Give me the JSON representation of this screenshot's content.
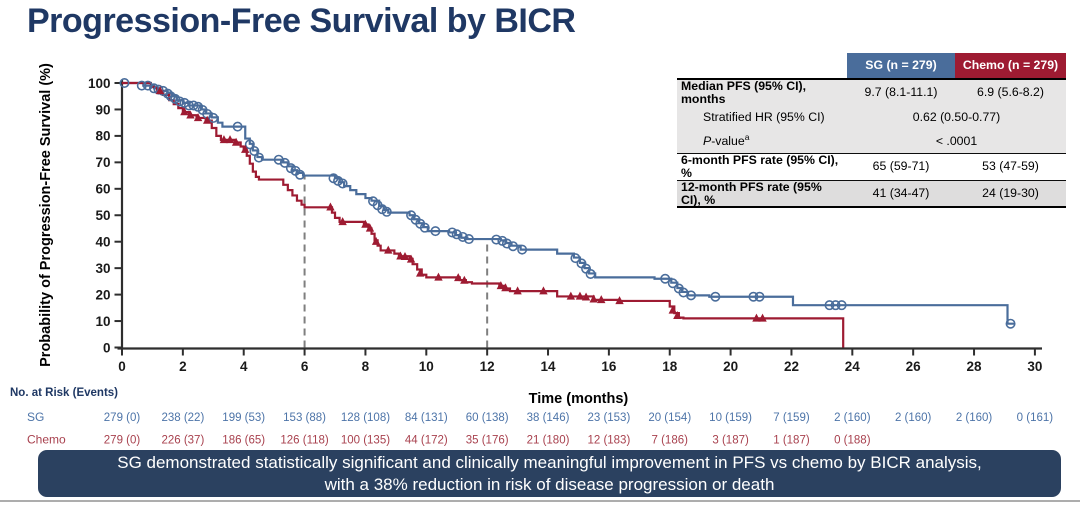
{
  "title": "Progression-Free Survival by BICR",
  "colors": {
    "title_navy": "#1f3864",
    "sg_blue": "#4a6d9b",
    "chemo_red": "#9e1b32",
    "banner_bg": "#2b4160",
    "table_row_gray": "#e7e6e6"
  },
  "stats_table": {
    "header": {
      "sg": "SG (n = 279)",
      "chemo": "Chemo (n = 279)"
    },
    "rows": {
      "median": {
        "label": "Median PFS (95% CI), months",
        "sg": "9.7 (8.1-11.1)",
        "chemo": "6.9 (5.6-8.2)"
      },
      "hr": {
        "label": "Stratified HR (95% CI)",
        "value": "0.62 (0.50-0.77)"
      },
      "pvalue": {
        "label_italic": "P",
        "label_rest": "-value",
        "label_sup": "a",
        "value": "< .0001"
      },
      "rate6": {
        "label": "6-month PFS rate (95% CI), %",
        "sg": "65 (59-71)",
        "chemo": "53 (47-59)"
      },
      "rate12": {
        "label": "12-month PFS rate (95% CI), %",
        "sg": "41 (34-47)",
        "chemo": "24 (19-30)"
      }
    }
  },
  "banner": {
    "line1": "SG demonstrated statistically significant and clinically meaningful improvement in PFS vs chemo by BICR analysis,",
    "line2": "with a 38% reduction in risk of disease progression or death"
  },
  "chart_data": {
    "type": "line",
    "subtype": "kaplan-meier-step",
    "xlabel": "Time (months)",
    "ylabel": "Probability of Progression-Free Survival (%)",
    "xlim": [
      0,
      31
    ],
    "ylim": [
      0,
      100
    ],
    "x_ticks": [
      0,
      2,
      4,
      6,
      8,
      10,
      12,
      14,
      16,
      18,
      20,
      22,
      24,
      26,
      28,
      30
    ],
    "y_ticks": [
      0,
      10,
      20,
      30,
      40,
      50,
      60,
      70,
      80,
      90,
      100
    ],
    "grid": false,
    "legend_position": "none (table header serves as legend)",
    "reference_lines": [
      {
        "x": 6,
        "y_top": 65,
        "style": "dashed"
      },
      {
        "x": 12,
        "y_top": 41,
        "style": "dashed"
      }
    ],
    "series": [
      {
        "name": "SG",
        "color": "#4a6d9b",
        "marker": "circle",
        "end": 29.35,
        "steps": [
          [
            0,
            100
          ],
          [
            0.7,
            99
          ],
          [
            1.05,
            98
          ],
          [
            1.25,
            97
          ],
          [
            1.5,
            96
          ],
          [
            1.65,
            95
          ],
          [
            1.8,
            93.5
          ],
          [
            2,
            92.5
          ],
          [
            2.2,
            91.5
          ],
          [
            2.6,
            90
          ],
          [
            2.75,
            88.5
          ],
          [
            2.95,
            87
          ],
          [
            3.15,
            85
          ],
          [
            3.3,
            83.5
          ],
          [
            4.05,
            79
          ],
          [
            4.2,
            77
          ],
          [
            4.3,
            74.5
          ],
          [
            4.45,
            72
          ],
          [
            4.6,
            71
          ],
          [
            5.3,
            70
          ],
          [
            5.45,
            68.5
          ],
          [
            5.6,
            67
          ],
          [
            5.75,
            66
          ],
          [
            5.95,
            65
          ],
          [
            7,
            64
          ],
          [
            7.15,
            62.5
          ],
          [
            7.3,
            61
          ],
          [
            7.5,
            59.5
          ],
          [
            7.7,
            58
          ],
          [
            8,
            56.5
          ],
          [
            8.2,
            55.5
          ],
          [
            8.45,
            53.5
          ],
          [
            8.6,
            52
          ],
          [
            8.75,
            51
          ],
          [
            9.45,
            50
          ],
          [
            9.6,
            48.5
          ],
          [
            9.75,
            47
          ],
          [
            9.9,
            45.5
          ],
          [
            10.05,
            44
          ],
          [
            10.75,
            43.5
          ],
          [
            10.95,
            42.5
          ],
          [
            11.15,
            41.5
          ],
          [
            11.35,
            41
          ],
          [
            12.45,
            40.5
          ],
          [
            12.6,
            39.5
          ],
          [
            12.8,
            38.5
          ],
          [
            13.1,
            37
          ],
          [
            14.3,
            35.5
          ],
          [
            14.85,
            34
          ],
          [
            15.05,
            32
          ],
          [
            15.2,
            30
          ],
          [
            15.35,
            28
          ],
          [
            15.55,
            26.5
          ],
          [
            17.5,
            26
          ],
          [
            18.05,
            24.5
          ],
          [
            18.25,
            22.5
          ],
          [
            18.4,
            21
          ],
          [
            18.6,
            19.7
          ],
          [
            19.3,
            19.2
          ],
          [
            22.05,
            16
          ],
          [
            29.1,
            9
          ]
        ],
        "censors": [
          [
            0.08,
            100
          ],
          [
            0.65,
            99
          ],
          [
            0.85,
            99
          ],
          [
            1.05,
            98
          ],
          [
            1.2,
            97.5
          ],
          [
            1.35,
            97
          ],
          [
            1.5,
            96
          ],
          [
            1.6,
            95
          ],
          [
            1.75,
            94
          ],
          [
            1.9,
            93
          ],
          [
            2.05,
            92.5
          ],
          [
            2.2,
            91.5
          ],
          [
            2.35,
            91.5
          ],
          [
            2.5,
            91
          ],
          [
            2.65,
            89.8
          ],
          [
            2.8,
            88.3
          ],
          [
            3,
            86.8
          ],
          [
            3.8,
            83.5
          ],
          [
            4.2,
            76.8
          ],
          [
            4.35,
            74.3
          ],
          [
            4.5,
            71.8
          ],
          [
            5.15,
            71
          ],
          [
            5.35,
            69.8
          ],
          [
            5.55,
            67.8
          ],
          [
            5.7,
            66.8
          ],
          [
            5.85,
            65.3
          ],
          [
            6.95,
            64
          ],
          [
            7.1,
            63
          ],
          [
            7.25,
            62
          ],
          [
            8.25,
            55.3
          ],
          [
            8.4,
            53.8
          ],
          [
            8.55,
            52.3
          ],
          [
            8.7,
            51.3
          ],
          [
            9.5,
            50
          ],
          [
            9.65,
            48.3
          ],
          [
            9.8,
            46.8
          ],
          [
            9.95,
            45.3
          ],
          [
            10.3,
            44
          ],
          [
            10.85,
            43.5
          ],
          [
            11,
            42.8
          ],
          [
            11.2,
            41.8
          ],
          [
            11.4,
            41
          ],
          [
            12.3,
            40.8
          ],
          [
            12.5,
            40.3
          ],
          [
            12.65,
            39.3
          ],
          [
            12.85,
            38.3
          ],
          [
            13.15,
            37
          ],
          [
            14.9,
            33.8
          ],
          [
            15.1,
            31.8
          ],
          [
            15.25,
            29.8
          ],
          [
            15.4,
            27.8
          ],
          [
            17.85,
            26
          ],
          [
            18.1,
            24.3
          ],
          [
            18.3,
            22.3
          ],
          [
            18.45,
            20.8
          ],
          [
            18.7,
            19.7
          ],
          [
            19.5,
            19.2
          ],
          [
            20.75,
            19.2
          ],
          [
            20.95,
            19.2
          ],
          [
            23.25,
            16
          ],
          [
            23.45,
            16
          ],
          [
            23.65,
            16
          ],
          [
            29.2,
            9
          ]
        ]
      },
      {
        "name": "Chemo",
        "color": "#9e1b32",
        "marker": "triangle",
        "end": 23.7,
        "steps": [
          [
            0,
            100
          ],
          [
            0.95,
            98.5
          ],
          [
            1.15,
            97
          ],
          [
            1.35,
            95.5
          ],
          [
            1.55,
            93.5
          ],
          [
            1.7,
            92
          ],
          [
            1.85,
            90.5
          ],
          [
            2,
            89
          ],
          [
            2.2,
            87.8
          ],
          [
            2.45,
            86.8
          ],
          [
            2.75,
            85.8
          ],
          [
            2.95,
            83
          ],
          [
            3.1,
            80
          ],
          [
            3.25,
            78.5
          ],
          [
            3.7,
            77.5
          ],
          [
            3.9,
            76
          ],
          [
            4,
            75
          ],
          [
            4.1,
            72.5
          ],
          [
            4.2,
            69.5
          ],
          [
            4.3,
            66.5
          ],
          [
            4.4,
            64.5
          ],
          [
            4.5,
            63.5
          ],
          [
            5.3,
            61.5
          ],
          [
            5.45,
            59.5
          ],
          [
            5.6,
            57.5
          ],
          [
            5.75,
            55.5
          ],
          [
            5.9,
            54
          ],
          [
            6,
            53
          ],
          [
            6.9,
            51
          ],
          [
            7,
            49
          ],
          [
            7.15,
            47.5
          ],
          [
            7.95,
            46.5
          ],
          [
            8.1,
            45
          ],
          [
            8.2,
            43
          ],
          [
            8.3,
            40.5
          ],
          [
            8.4,
            38.5
          ],
          [
            8.5,
            36.7
          ],
          [
            8.95,
            35.5
          ],
          [
            9.1,
            34.5
          ],
          [
            9.45,
            33.5
          ],
          [
            9.55,
            31.5
          ],
          [
            9.7,
            29.5
          ],
          [
            9.85,
            27.5
          ],
          [
            10,
            26.5
          ],
          [
            11.1,
            25.5
          ],
          [
            11.3,
            24.7
          ],
          [
            11.5,
            24.2
          ],
          [
            12.4,
            23.3
          ],
          [
            12.6,
            22.3
          ],
          [
            12.75,
            21.3
          ],
          [
            14.3,
            19.3
          ],
          [
            15.5,
            18
          ],
          [
            16.3,
            17.6
          ],
          [
            18,
            15.5
          ],
          [
            18.15,
            13
          ],
          [
            18.3,
            11.3
          ],
          [
            18.45,
            11
          ],
          [
            23.7,
            0
          ]
        ],
        "censors": [
          [
            1.25,
            97
          ],
          [
            2.05,
            89
          ],
          [
            2.25,
            87.8
          ],
          [
            2.5,
            86.8
          ],
          [
            2.8,
            85.8
          ],
          [
            3.35,
            78.5
          ],
          [
            3.55,
            78.5
          ],
          [
            3.75,
            77.5
          ],
          [
            4.05,
            74.8
          ],
          [
            6.85,
            53
          ],
          [
            7.25,
            47.5
          ],
          [
            8,
            46.5
          ],
          [
            8.15,
            45
          ],
          [
            8.35,
            40
          ],
          [
            8.75,
            36.7
          ],
          [
            9.15,
            34.5
          ],
          [
            9.3,
            34.3
          ],
          [
            9.5,
            33.3
          ],
          [
            9.8,
            28
          ],
          [
            10.4,
            26.5
          ],
          [
            11.05,
            26.3
          ],
          [
            11.25,
            25.3
          ],
          [
            12.45,
            23.3
          ],
          [
            12.6,
            22.5
          ],
          [
            13,
            21.3
          ],
          [
            13.85,
            21.3
          ],
          [
            14.75,
            19.3
          ],
          [
            15.05,
            19.3
          ],
          [
            15.25,
            19
          ],
          [
            15.5,
            18.2
          ],
          [
            15.75,
            18
          ],
          [
            16.35,
            17.6
          ],
          [
            18.1,
            14
          ],
          [
            18.25,
            12
          ],
          [
            20.85,
            11
          ],
          [
            21.05,
            11
          ]
        ]
      }
    ],
    "at_risk": {
      "header": "No. at Risk (Events)",
      "times": [
        0,
        2,
        4,
        6,
        8,
        10,
        12,
        14,
        16,
        18,
        20,
        22,
        24,
        26,
        28,
        30
      ],
      "rows": [
        {
          "name": "SG",
          "color": "#4d74a8",
          "values": [
            "279 (0)",
            "238 (22)",
            "199 (53)",
            "153 (88)",
            "128 (108)",
            "84 (131)",
            "60 (138)",
            "38 (146)",
            "23 (153)",
            "20 (154)",
            "10 (159)",
            "7 (159)",
            "2 (160)",
            "2 (160)",
            "2 (160)",
            "0 (161)"
          ]
        },
        {
          "name": "Chemo",
          "color": "#a8414e",
          "values": [
            "279 (0)",
            "226 (37)",
            "186 (65)",
            "126 (118)",
            "100 (135)",
            "44 (172)",
            "35 (176)",
            "21 (180)",
            "12 (183)",
            "7 (186)",
            "3 (187)",
            "1 (187)",
            "0 (188)"
          ]
        }
      ]
    }
  }
}
